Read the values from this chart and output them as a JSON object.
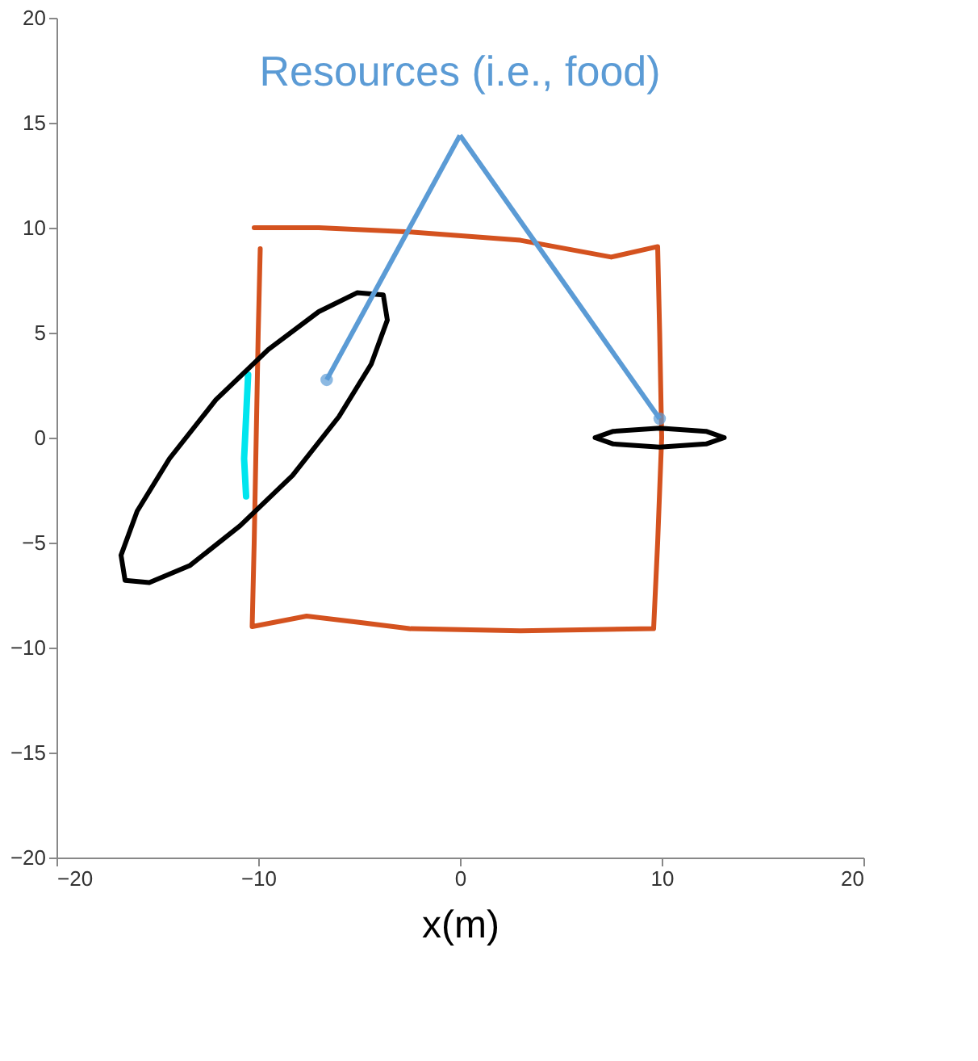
{
  "chart_data": {
    "type": "line",
    "xlabel": "x(m)",
    "annotations": [
      "Resources (i.e., food)"
    ],
    "xlim": [
      -20,
      20
    ],
    "ylim": [
      -20,
      20
    ],
    "xticks": [
      -20,
      -10,
      0,
      10,
      20
    ],
    "yticks": [
      -20,
      -15,
      -10,
      -5,
      0,
      5,
      10,
      15,
      20
    ],
    "grid": false,
    "marker": "none",
    "line_style": "solid",
    "series": [
      {
        "color": "#d4521f",
        "x": [
          -9.9,
          -10.0,
          -10.1,
          -10.2,
          -10.3,
          -7.6,
          -5.0,
          -2.5,
          3.0,
          9.6,
          9.8,
          10.0,
          9.9,
          9.8,
          7.5,
          3.0,
          -2.5,
          -7.0,
          -10.2
        ],
        "values": [
          9.0,
          5.0,
          0.0,
          -5.0,
          -9.0,
          -8.5,
          -8.8,
          -9.1,
          -9.2,
          -9.1,
          -5.0,
          0.0,
          5.0,
          9.1,
          8.6,
          9.4,
          9.8,
          10.0,
          10.0
        ]
      },
      {
        "color": "#00e5ee",
        "x": [
          -10.5,
          -10.6,
          -10.7,
          -10.6
        ],
        "values": [
          3.0,
          1.0,
          -1.0,
          -2.8
        ]
      },
      {
        "color": "#000000",
        "x": [
          -16.8,
          -16.0,
          -14.4,
          -12.1,
          -9.5,
          -7.0,
          -5.1,
          -3.8,
          -3.6,
          null,
          -16.8,
          -16.6,
          -15.4,
          -13.4,
          -10.9,
          -8.3,
          -6.0,
          -4.4,
          -3.6
        ],
        "values": [
          -5.6,
          -3.5,
          -1.0,
          1.8,
          4.2,
          6.0,
          6.9,
          6.8,
          5.6,
          null,
          -5.6,
          -6.8,
          -6.9,
          -6.1,
          -4.2,
          -1.8,
          1.0,
          3.5,
          5.6
        ]
      },
      {
        "color": "#000000",
        "x": [
          6.7,
          7.6,
          9.9,
          12.2,
          13.1,
          null,
          6.7,
          7.6,
          9.9,
          12.2,
          13.1
        ],
        "values": [
          0.0,
          0.3,
          0.45,
          0.3,
          0.0,
          null,
          0.0,
          -0.3,
          -0.45,
          -0.3,
          0.0
        ]
      }
    ]
  }
}
